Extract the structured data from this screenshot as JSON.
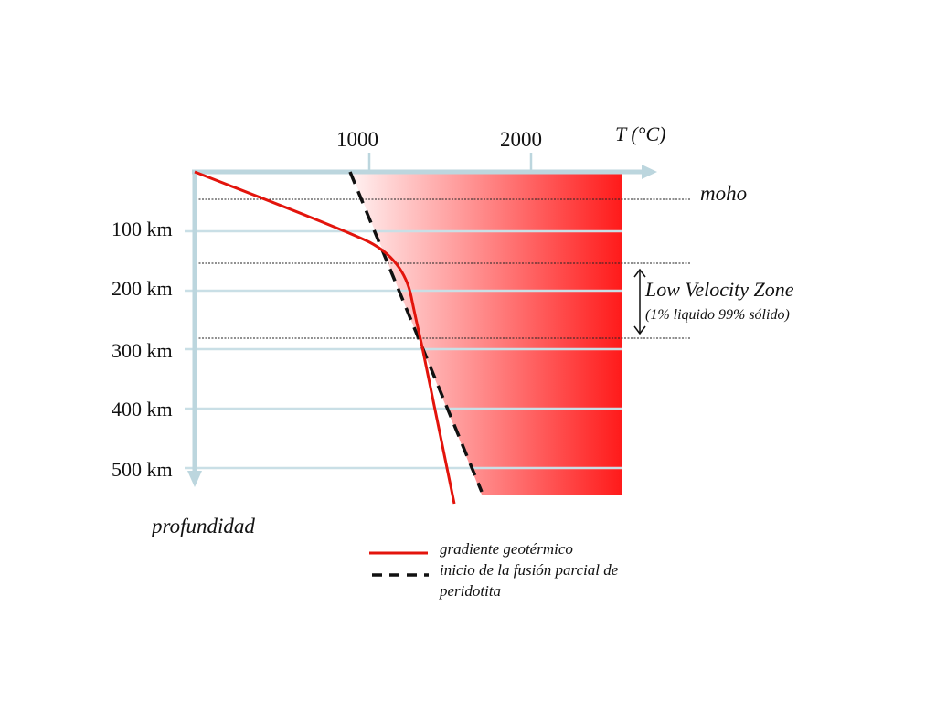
{
  "axes": {
    "temperature_label": "T (°C)",
    "temperature_ticks": [
      "1000",
      "2000"
    ],
    "depth_label": "profundidad",
    "depth_ticks": [
      "100 km",
      "200 km",
      "300 km",
      "400 km",
      "500 km"
    ]
  },
  "annotations": {
    "moho": "moho",
    "lvz_title": "Low Velocity Zone",
    "lvz_subtitle": "(1% liquido 99% sólido)"
  },
  "legend": {
    "geotherm": "gradiente geotérmico",
    "solidus_line1": "inicio de la fusión parcial de",
    "solidus_line2": "peridotita"
  },
  "colors": {
    "axis": "#bcd6de",
    "geotherm": "#e3140c",
    "solidus": "#111111",
    "melt_region": "#ff1a1a"
  }
}
